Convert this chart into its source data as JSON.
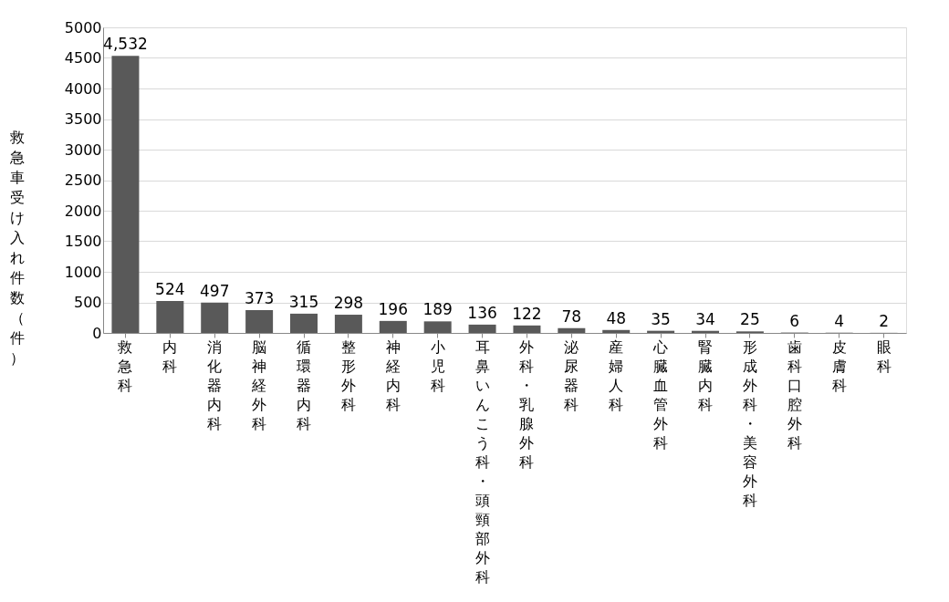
{
  "chart_data": {
    "type": "bar",
    "ylabel": "救急車受け入れ件数（件）",
    "categories": [
      "救急科",
      "内科",
      "消化器内科",
      "脳神経外科",
      "循環器内科",
      "整形外科",
      "神経内科",
      "小児科",
      "耳鼻いんこう科・頭頸部外科",
      "外科・乳腺外科",
      "泌尿器科",
      "産婦人科",
      "心臓血管外科",
      "腎臓内科",
      "形成外科・美容外科",
      "歯科口腔外科",
      "皮膚科",
      "眼科"
    ],
    "values": [
      4532,
      524,
      497,
      373,
      315,
      298,
      196,
      189,
      136,
      122,
      78,
      48,
      35,
      34,
      25,
      6,
      4,
      2
    ],
    "color": "#595959",
    "ylim": [
      0,
      5000
    ],
    "yticks": [
      0,
      500,
      1000,
      1500,
      2000,
      2500,
      3000,
      3500,
      4000,
      4500,
      5000
    ],
    "grid": "y",
    "value_labels": [
      "4,532",
      "524",
      "497",
      "373",
      "315",
      "298",
      "196",
      "189",
      "136",
      "122",
      "78",
      "48",
      "35",
      "34",
      "25",
      "6",
      "4",
      "2"
    ]
  }
}
